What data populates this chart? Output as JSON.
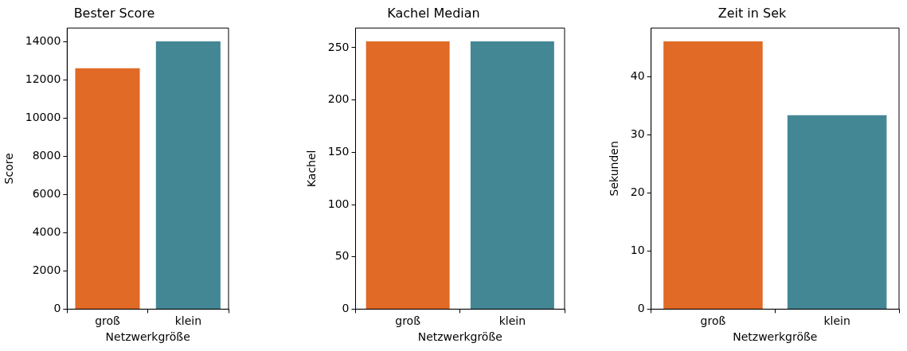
{
  "chart_data": [
    {
      "type": "bar",
      "title": "Bester Score",
      "xlabel": "Netzwerkgröße",
      "ylabel": "Score",
      "categories": [
        "groß",
        "klein"
      ],
      "values": [
        12600,
        14000
      ],
      "colors": [
        "#e06a26",
        "#438795"
      ],
      "ylim": [
        0,
        14700
      ],
      "yticks": [
        0,
        2000,
        4000,
        6000,
        8000,
        10000,
        12000,
        14000
      ],
      "grid": false
    },
    {
      "type": "bar",
      "title": "Kachel Median",
      "xlabel": "Netzwerkgröße",
      "ylabel": "Kachel",
      "categories": [
        "groß",
        "klein"
      ],
      "values": [
        256,
        256
      ],
      "colors": [
        "#e06a26",
        "#438795"
      ],
      "ylim": [
        0,
        268.8
      ],
      "yticks": [
        0,
        50,
        100,
        150,
        200,
        250
      ],
      "grid": false
    },
    {
      "type": "bar",
      "title": "Zeit in Sek",
      "xlabel": "Netzwerkgröße",
      "ylabel": "Sekunden",
      "categories": [
        "groß",
        "klein"
      ],
      "values": [
        46.1,
        33.4
      ],
      "colors": [
        "#e06a26",
        "#438795"
      ],
      "ylim": [
        0,
        48.4
      ],
      "yticks": [
        0,
        10,
        20,
        30,
        40
      ],
      "grid": false
    }
  ]
}
